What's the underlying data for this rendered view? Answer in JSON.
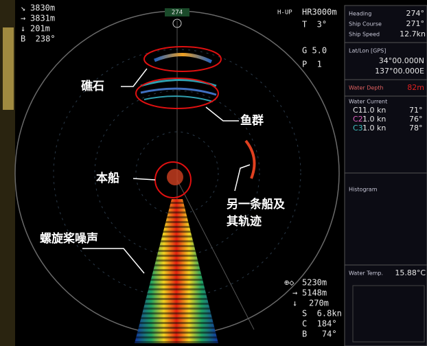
{
  "top_left": [
    "3830m",
    "3831m",
    "201m",
    "B  238°"
  ],
  "top_center": "274",
  "top_right": [
    "H-UP",
    "HR3000m",
    "T  3°",
    "G 5.0",
    "P  1"
  ],
  "panel": {
    "heading": {
      "label": "Heading",
      "value": "274°"
    },
    "ship_course": {
      "label": "Ship Course",
      "value": "271°"
    },
    "ship_speed": {
      "label": "Ship Speed",
      "value": "12.7kn"
    },
    "latlon": {
      "label": "Lat/Lon [GPS]",
      "lat": "34°00.000N",
      "lon": "137°00.000E"
    },
    "water_depth": {
      "label": "Water Depth",
      "value": "82m"
    },
    "water_current": {
      "label": "Water Current",
      "rows": [
        [
          "C1",
          "1.0 kn",
          "71°"
        ],
        [
          "C2",
          "1.0 kn",
          "76°"
        ],
        [
          "C3",
          "1.0 kn",
          "78°"
        ]
      ]
    },
    "histogram": "Histogram",
    "water_temp": {
      "label": "Water Temp.",
      "value": "15.88°C"
    }
  },
  "bottom_right": [
    "5230m",
    "5148m",
    "270m",
    "S  6.8kn",
    "C  184°",
    "B   74°"
  ],
  "annotations": {
    "reef": "礁石",
    "fish": "鱼群",
    "own_ship": "本船",
    "other_ship": [
      "另一条船及",
      "其轨迹"
    ],
    "propeller_noise": "螺旋桨噪声"
  }
}
